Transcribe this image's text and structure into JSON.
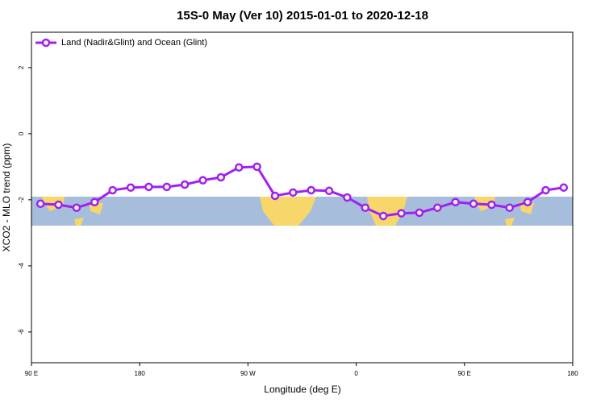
{
  "chart_data": {
    "type": "line",
    "title": "15S-0 May (Ver 10)   2015-01-01 to 2020-12-18",
    "x_label": "Longitude (deg E)",
    "y_label": "XCO2 - MLO trend (ppm)",
    "x": [
      97.5,
      112.5,
      127.5,
      142.5,
      157.5,
      172.5,
      187.5,
      202.5,
      217.5,
      232.5,
      247.5,
      262.5,
      277.5,
      292.5,
      307.5,
      322.5,
      337.5,
      352.5,
      367.5,
      382.5,
      397.5,
      412.5,
      427.5,
      442.5,
      457.5,
      472.5,
      487.5,
      502.5,
      517.5,
      532.5
    ],
    "series": [
      {
        "name": "Land (Nadir&Glint) and Ocean (Glint)",
        "color": "#a020f0",
        "values": [
          -2.12,
          -2.15,
          -2.24,
          -2.07,
          -1.71,
          -1.63,
          -1.61,
          -1.61,
          -1.54,
          -1.41,
          -1.32,
          -1.02,
          -1.0,
          -1.88,
          -1.78,
          -1.71,
          -1.73,
          -1.93,
          -2.24,
          -2.49,
          -2.41,
          -2.39,
          -2.24,
          -2.07,
          -2.12,
          -2.15,
          -2.24,
          -2.07,
          -1.71,
          -1.63
        ]
      }
    ],
    "xlim": [
      90,
      540
    ],
    "xticks": [
      {
        "value": 90,
        "label": "90 E"
      },
      180,
      {
        "value": 270,
        "label": "90 W"
      },
      {
        "value": 360,
        "label": "0"
      },
      {
        "value": 450,
        "label": "90 E"
      },
      {
        "value": 540,
        "label": "180"
      }
    ],
    "ylim": [
      -6.93,
      3.07
    ],
    "yticks": [
      -6,
      -4,
      -2,
      0,
      2
    ],
    "legend": "top-left"
  }
}
